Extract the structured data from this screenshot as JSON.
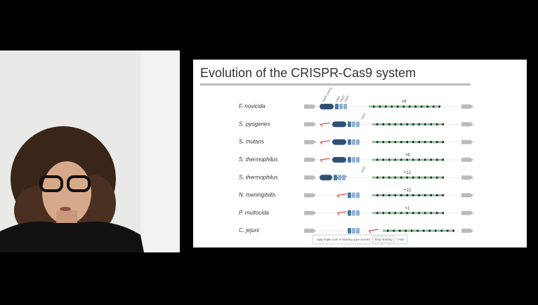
{
  "slide": {
    "title": "Evolution of the CRISPR-Cas9 system",
    "gene_labels": [
      "cas9 (csn1)",
      "cas1",
      "cas2",
      "cas4",
      "csn2",
      "csn2"
    ],
    "rows": [
      {
        "species": "F. novicida",
        "count": "+9"
      },
      {
        "species": "S. pyogenes"
      },
      {
        "species": "S. mutans"
      },
      {
        "species": "S. thermophilus",
        "count": "+4"
      },
      {
        "species": "S. thermophilus",
        "count": "+12"
      },
      {
        "species": "N. meningitidis",
        "count": "+12"
      },
      {
        "species": "P. multocida",
        "count": "+1"
      },
      {
        "species": "C. jejuni"
      }
    ]
  },
  "share_bar": {
    "message": "app.hopin.com is sharing your screen.",
    "stop": "Stop sharing",
    "hide": "Hide"
  }
}
